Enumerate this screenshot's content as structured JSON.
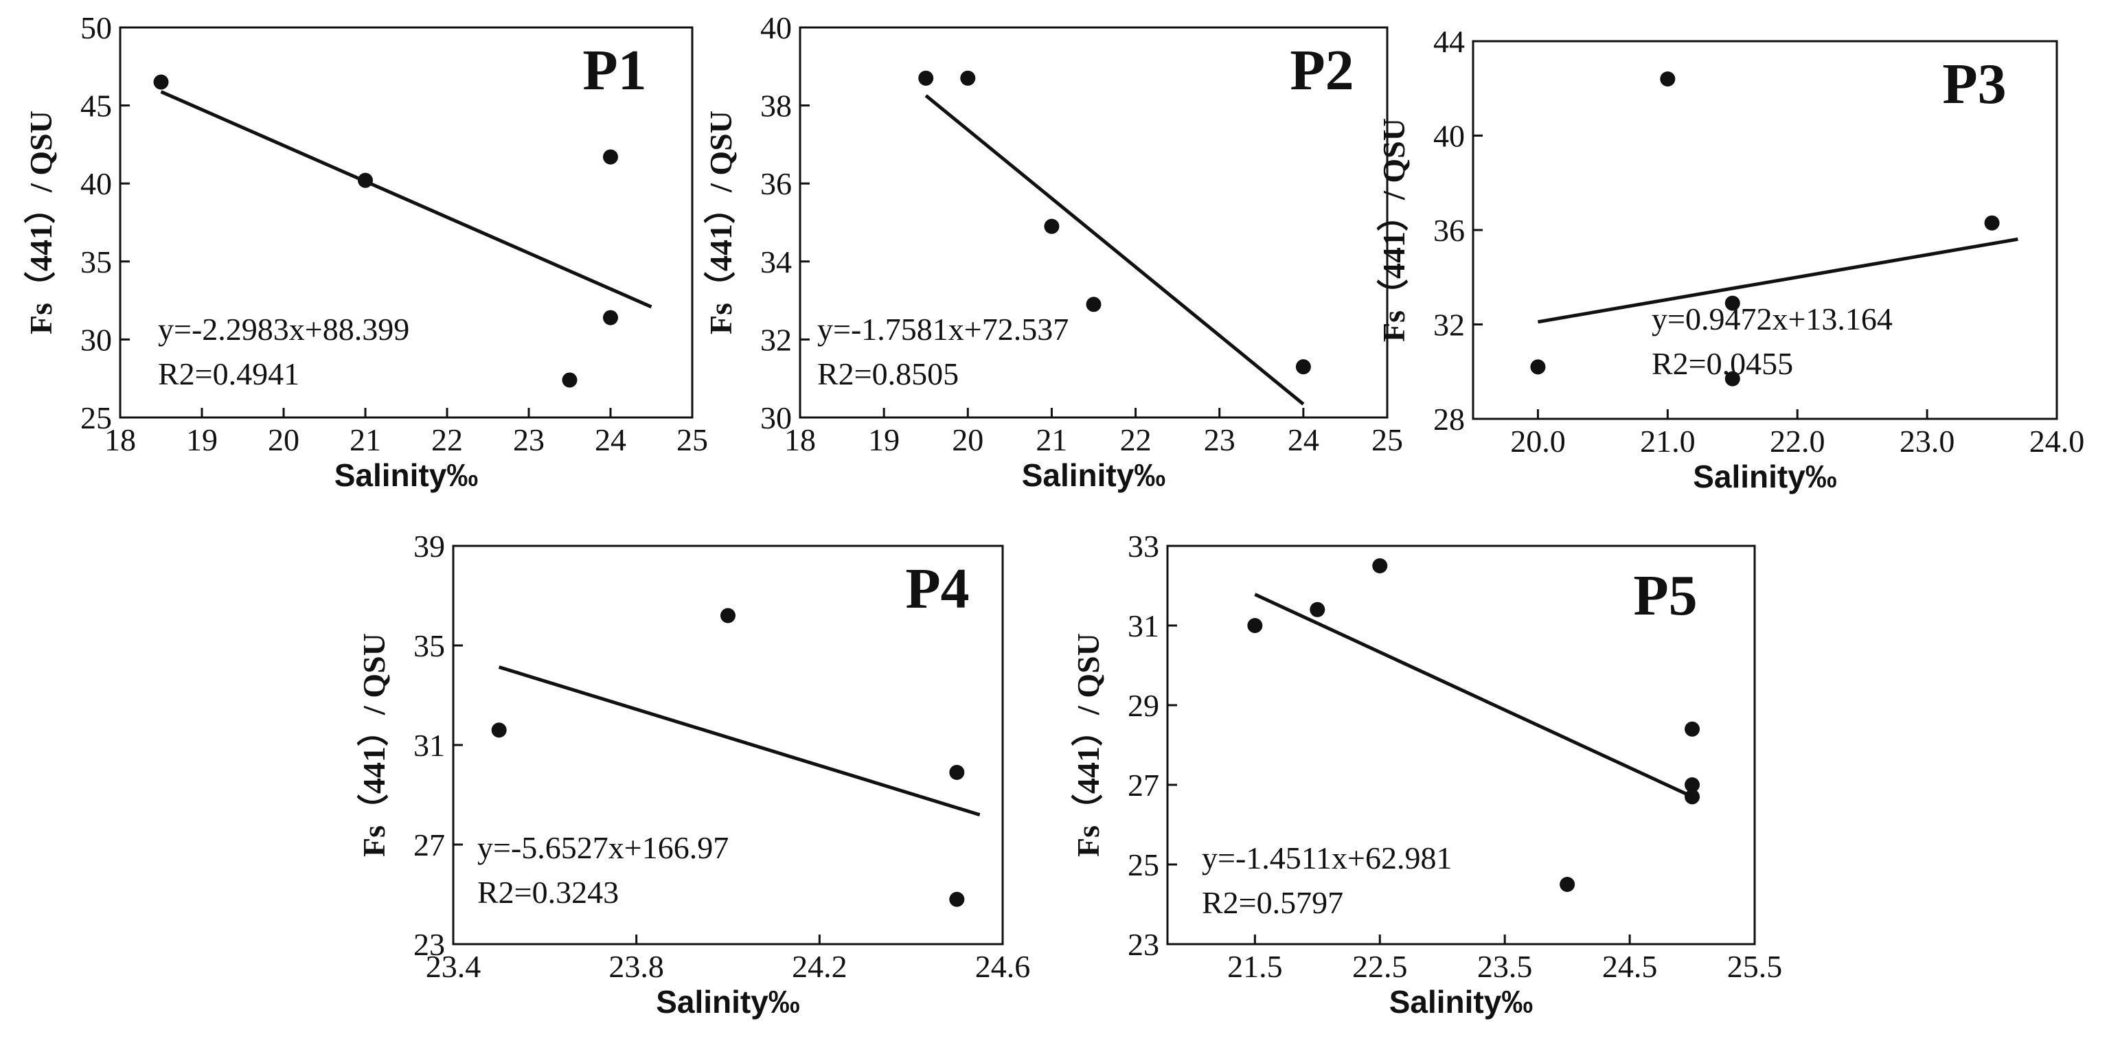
{
  "chart_data": [
    {
      "type": "scatter",
      "title": "P1",
      "xlabel": "Salinity‰",
      "ylabel": "Fs（441）/ QSU",
      "xlim": [
        18,
        25
      ],
      "ylim": [
        25,
        50
      ],
      "xticks": [
        "18",
        "19",
        "20",
        "21",
        "22",
        "23",
        "24",
        "25"
      ],
      "yticks": [
        "25",
        "30",
        "35",
        "40",
        "45",
        "50"
      ],
      "points": [
        {
          "x": 18.5,
          "y": 46.5
        },
        {
          "x": 21.0,
          "y": 40.2
        },
        {
          "x": 23.5,
          "y": 27.4
        },
        {
          "x": 24.0,
          "y": 41.7
        },
        {
          "x": 24.0,
          "y": 31.4
        }
      ],
      "fit": {
        "slope": -2.2983,
        "intercept": 88.399,
        "x_range": [
          18.5,
          24.5
        ]
      },
      "equation": "y=-2.2983x+88.399",
      "r2": "R2=0.4941",
      "grid": false
    },
    {
      "type": "scatter",
      "title": "P2",
      "xlabel": "Salinity‰",
      "ylabel": "Fs（441）/ QSU",
      "xlim": [
        18,
        25
      ],
      "ylim": [
        30,
        40
      ],
      "xticks": [
        "18",
        "19",
        "20",
        "21",
        "22",
        "23",
        "24",
        "25"
      ],
      "yticks": [
        "30",
        "32",
        "34",
        "36",
        "38",
        "40"
      ],
      "points": [
        {
          "x": 19.5,
          "y": 38.7
        },
        {
          "x": 20.0,
          "y": 38.7
        },
        {
          "x": 21.0,
          "y": 34.9
        },
        {
          "x": 21.5,
          "y": 32.9
        },
        {
          "x": 24.0,
          "y": 31.3
        }
      ],
      "fit": {
        "slope": -1.7581,
        "intercept": 72.537,
        "x_range": [
          19.5,
          24.0
        ]
      },
      "equation": "y=-1.7581x+72.537",
      "r2": "R2=0.8505",
      "grid": false
    },
    {
      "type": "scatter",
      "title": "P3",
      "xlabel": "Salinity‰",
      "ylabel": "Fs（441）/ QSU",
      "xlim": [
        19.5,
        24.0
      ],
      "ylim": [
        28,
        44
      ],
      "xticks_at": [
        20,
        21,
        22,
        23,
        24
      ],
      "xticks": [
        "20.0",
        "21.0",
        "22.0",
        "23.0",
        "24.0"
      ],
      "yticks": [
        "28",
        "32",
        "36",
        "40",
        "44"
      ],
      "points": [
        {
          "x": 20.0,
          "y": 30.2
        },
        {
          "x": 21.0,
          "y": 42.4
        },
        {
          "x": 21.5,
          "y": 32.9
        },
        {
          "x": 21.5,
          "y": 29.7
        },
        {
          "x": 23.5,
          "y": 36.3
        }
      ],
      "fit": {
        "slope": 0.9472,
        "intercept": 13.164,
        "x_range": [
          20.0,
          23.7
        ]
      },
      "equation": "y=0.9472x+13.164",
      "r2": "R2=0.0455",
      "grid": false
    },
    {
      "type": "scatter",
      "title": "P4",
      "xlabel": "Salinity‰",
      "ylabel": "Fs（441）/ QSU",
      "xlim": [
        23.4,
        24.6
      ],
      "ylim": [
        23,
        39
      ],
      "xticks": [
        "23.4",
        "23.8",
        "24.2",
        "24.6"
      ],
      "yticks": [
        "23",
        "27",
        "31",
        "35",
        "39"
      ],
      "points": [
        {
          "x": 23.5,
          "y": 31.6
        },
        {
          "x": 24.0,
          "y": 36.2
        },
        {
          "x": 24.5,
          "y": 29.9
        },
        {
          "x": 24.5,
          "y": 24.8
        }
      ],
      "fit": {
        "slope": -5.6527,
        "intercept": 166.97,
        "x_range": [
          23.5,
          24.55
        ]
      },
      "equation": "y=-5.6527x+166.97",
      "r2": "R2=0.3243",
      "grid": false
    },
    {
      "type": "scatter",
      "title": "P5",
      "xlabel": "Salinity‰",
      "ylabel": "Fs（441）/ QSU",
      "xlim": [
        20.8,
        25.5
      ],
      "ylim": [
        23,
        33
      ],
      "xticks_at": [
        21.5,
        22.5,
        23.5,
        24.5,
        25.5
      ],
      "xticks": [
        "21.5",
        "22.5",
        "23.5",
        "24.5",
        "25.5"
      ],
      "yticks": [
        "23",
        "25",
        "27",
        "29",
        "31",
        "33"
      ],
      "points": [
        {
          "x": 21.5,
          "y": 31.0
        },
        {
          "x": 22.0,
          "y": 31.4
        },
        {
          "x": 22.5,
          "y": 32.5
        },
        {
          "x": 24.0,
          "y": 24.5
        },
        {
          "x": 25.0,
          "y": 28.4
        },
        {
          "x": 25.0,
          "y": 27.0
        },
        {
          "x": 25.0,
          "y": 26.7
        }
      ],
      "fit": {
        "slope": -1.4511,
        "intercept": 62.981,
        "x_range": [
          21.5,
          25.0
        ]
      },
      "equation": "y=-1.4511x+62.981",
      "r2": "R2=0.5797",
      "grid": false
    }
  ]
}
